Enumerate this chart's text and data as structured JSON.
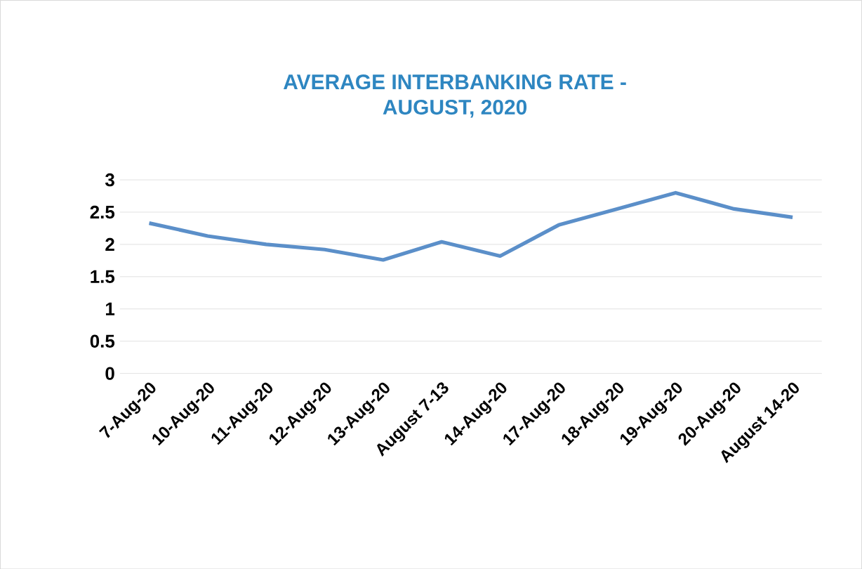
{
  "chart_data": {
    "type": "line",
    "title": "AVERAGE  INTERBANKING RATE - AUGUST, 2020",
    "categories": [
      "7-Aug-20",
      "10-Aug-20",
      "11-Aug-20",
      "12-Aug-20",
      "13-Aug-20",
      "August 7-13",
      "14-Aug-20",
      "17-Aug-20",
      "18-Aug-20",
      "19-Aug-20",
      "20-Aug-20",
      "August 14-20"
    ],
    "values": [
      2.33,
      2.13,
      2.0,
      1.92,
      1.76,
      2.04,
      1.82,
      2.3,
      2.55,
      2.8,
      2.55,
      2.42
    ],
    "color": "#5b8fc9",
    "ylim": [
      0,
      3
    ],
    "yticks": [
      0,
      0.5,
      1,
      1.5,
      2,
      2.5,
      3
    ],
    "grid": "y",
    "marker": "none",
    "line_style": "solid"
  }
}
